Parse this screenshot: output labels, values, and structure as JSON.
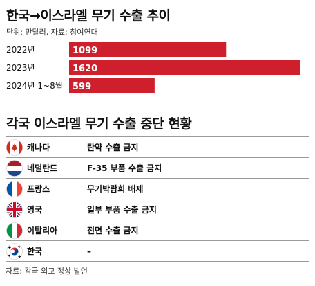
{
  "title": "한국→이스라엘 무기 수출 추이",
  "unit_note": "단위: 만달러, 자료: 참여연대",
  "chart_data": {
    "type": "bar",
    "orientation": "horizontal",
    "categories": [
      "2022년",
      "2023년",
      "2024년 1~8월"
    ],
    "values": [
      1099,
      1620,
      599
    ],
    "title": "한국→이스라엘 무기 수출 추이",
    "value_labels": [
      "1099",
      "1620",
      "599"
    ],
    "bar_color": "#cf1f2d",
    "xlim": [
      0,
      1620
    ]
  },
  "table_title": "각국 이스라엘 무기 수출 중단 현황",
  "countries": [
    {
      "flag": "canada-flag",
      "name": "캐나다",
      "status": "탄약 수출 금지"
    },
    {
      "flag": "netherlands-flag",
      "name": "네덜란드",
      "status": "F-35 부품 수출 금지"
    },
    {
      "flag": "france-flag",
      "name": "프랑스",
      "status": "무기박람회 배제"
    },
    {
      "flag": "uk-flag",
      "name": "영국",
      "status": "일부 부품 수출 금지"
    },
    {
      "flag": "italy-flag",
      "name": "이탈리아",
      "status": "전면 수출 금지"
    },
    {
      "flag": "korea-flag",
      "name": "한국",
      "status": "–"
    }
  ],
  "source": "자료: 각국 외교 정상 발언"
}
